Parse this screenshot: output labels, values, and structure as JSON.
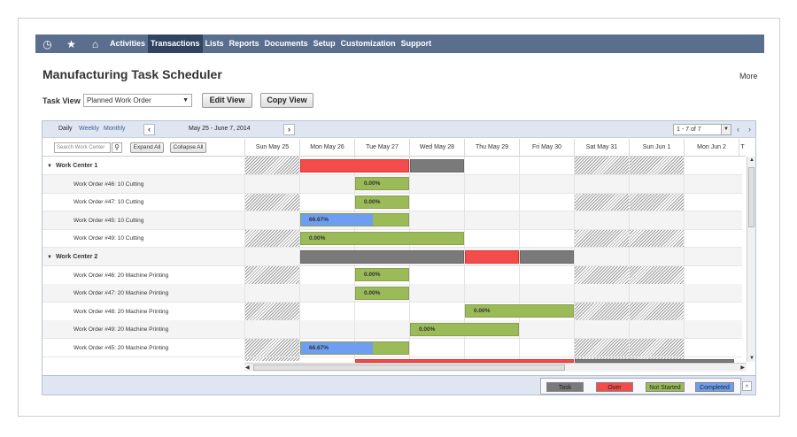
{
  "nav": {
    "icons": [
      "recent-icon",
      "star-icon",
      "home-icon"
    ],
    "items": [
      "Activities",
      "Transactions",
      "Lists",
      "Reports",
      "Documents",
      "Setup",
      "Customization",
      "Support"
    ],
    "active": "Transactions"
  },
  "page": {
    "title": "Manufacturing Task Scheduler",
    "more": "More"
  },
  "toolbar": {
    "task_view_label": "Task View",
    "task_view_value": "Planned Work Order",
    "edit_view": "Edit View",
    "copy_view": "Copy View"
  },
  "scheduler": {
    "zoom": {
      "daily": "Daily",
      "weekly": "Weekly",
      "monthly": "Monthly"
    },
    "prev": "‹",
    "next": "›",
    "range": "May 25 - June 7, 2014",
    "pager": "1 - 7 of 7",
    "search_placeholder": "Search Work Center",
    "expand_all": "Expand All",
    "collapse_all": "Collapse All",
    "days": [
      "Sun May 25",
      "Mon May 26",
      "Tue May 27",
      "Wed May 28",
      "Thu May 29",
      "Fri May 30",
      "Sat May 31",
      "Sun Jun 1",
      "Mon Jun 2",
      "T"
    ],
    "rows": [
      {
        "label": "Work Center 1",
        "group": true,
        "bars": [
          {
            "type": "over",
            "start": 1,
            "span": 2
          },
          {
            "type": "task",
            "start": 3,
            "span": 1
          }
        ]
      },
      {
        "label": "Work Order #46: 10 Cutting",
        "bars": [
          {
            "type": "ns",
            "start": 2,
            "span": 1,
            "pct": "0.00%",
            "done": 0
          }
        ]
      },
      {
        "label": "Work Order #47: 10 Cutting",
        "bars": [
          {
            "type": "ns",
            "start": 2,
            "span": 1,
            "pct": "0.00%",
            "done": 0
          }
        ]
      },
      {
        "label": "Work Order #45: 10 Cutting",
        "bars": [
          {
            "type": "ns",
            "start": 1,
            "span": 2,
            "pct": "66.67%",
            "done": 0.6667
          }
        ]
      },
      {
        "label": "Work Order #49: 10 Cutting",
        "bars": [
          {
            "type": "ns",
            "start": 1,
            "span": 3,
            "pct": "0.00%",
            "done": 0
          }
        ]
      },
      {
        "label": "Work Center 2",
        "group": true,
        "bars": [
          {
            "type": "task",
            "start": 1,
            "span": 3
          },
          {
            "type": "over",
            "start": 4,
            "span": 1
          },
          {
            "type": "task",
            "start": 5,
            "span": 1
          }
        ]
      },
      {
        "label": "Work Order #46: 20 Machine Printing",
        "bars": [
          {
            "type": "ns",
            "start": 2,
            "span": 1,
            "pct": "0.00%",
            "done": 0
          }
        ]
      },
      {
        "label": "Work Order #47: 20 Machine Printing",
        "bars": [
          {
            "type": "ns",
            "start": 2,
            "span": 1,
            "pct": "0.00%",
            "done": 0
          }
        ]
      },
      {
        "label": "Work Order #48: 20 Machine Printing",
        "bars": [
          {
            "type": "ns",
            "start": 4,
            "span": 2,
            "pct": "0.00%",
            "done": 0
          }
        ]
      },
      {
        "label": "Work Order #49: 20 Machine Printing",
        "bars": [
          {
            "type": "ns",
            "start": 3,
            "span": 2,
            "pct": "0.00%",
            "done": 0
          }
        ]
      },
      {
        "label": "Work Order #45: 20 Machine Printing",
        "bars": [
          {
            "type": "ns",
            "start": 1,
            "span": 2,
            "pct": "66.67%",
            "done": 0.6667
          }
        ]
      }
    ],
    "weekend_days": [
      0,
      6,
      7
    ]
  },
  "legend": {
    "task": "Task",
    "over": "Over",
    "not_started": "Not Started",
    "completed": "Completed"
  },
  "colors": {
    "nav": "#5a6e8e",
    "over": "#f44b4b",
    "task": "#7a7a7a",
    "not_started": "#9bbb59",
    "completed": "#6d9ef2"
  }
}
